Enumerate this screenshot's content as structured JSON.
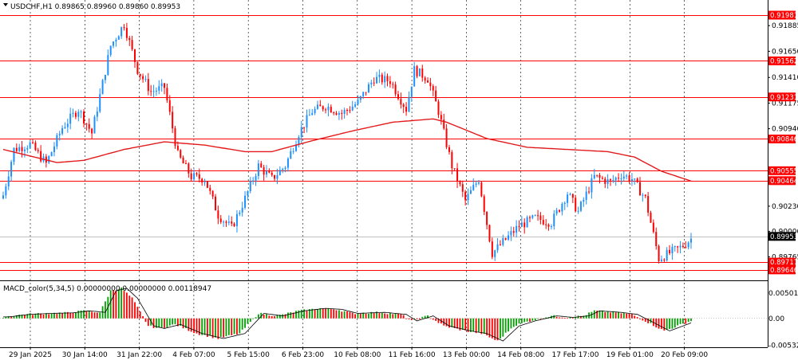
{
  "header": {
    "symbol_info": "USDCHF,H1  0.89865 0.89960 0.89860 0.89953",
    "macd_label": "MACD_color(5,34,5) 0.00000000 0.00000000 0.00118947"
  },
  "colors": {
    "bull": "#1e90ff",
    "bear": "#ff0000",
    "ma": "#e31a1c",
    "level": "#ff0000",
    "hist_up": "#00a000",
    "hist_down": "#ff0000",
    "grid": "#000000"
  },
  "chart_data": {
    "type": "candlestick",
    "price_axis": {
      "ylim": [
        0.8955,
        0.9212
      ],
      "ticks": [
        "0.91885",
        "0.91650",
        "0.91410",
        "0.91175",
        "0.90940",
        "0.90230",
        "0.90000",
        "0.89765"
      ]
    },
    "levels": [
      "0.91981",
      "0.91562",
      "0.91231",
      "0.90846",
      "0.90555",
      "0.90464",
      "0.89717",
      "0.89646"
    ],
    "current_price": "0.89953",
    "time_labels": [
      "29 Jan 2025",
      "30 Jan 14:00",
      "31 Jan 22:00",
      "4 Feb 07:00",
      "5 Feb 15:00",
      "6 Feb 23:00",
      "10 Feb 08:00",
      "11 Feb 16:00",
      "13 Feb 00:00",
      "14 Feb 08:00",
      "17 Feb 17:00",
      "19 Feb 01:00",
      "20 Feb 09:00"
    ],
    "close_anchors": [
      [
        0,
        0.9033
      ],
      [
        4,
        0.9075
      ],
      [
        10,
        0.908
      ],
      [
        16,
        0.9062
      ],
      [
        22,
        0.9095
      ],
      [
        28,
        0.9112
      ],
      [
        33,
        0.909
      ],
      [
        40,
        0.917
      ],
      [
        45,
        0.919
      ],
      [
        50,
        0.9148
      ],
      [
        55,
        0.9128
      ],
      [
        60,
        0.9132
      ],
      [
        65,
        0.907
      ],
      [
        70,
        0.905
      ],
      [
        75,
        0.9048
      ],
      [
        80,
        0.9015
      ],
      [
        85,
        0.9003
      ],
      [
        90,
        0.903
      ],
      [
        95,
        0.906
      ],
      [
        100,
        0.9048
      ],
      [
        105,
        0.906
      ],
      [
        110,
        0.909
      ],
      [
        115,
        0.911
      ],
      [
        120,
        0.9115
      ],
      [
        126,
        0.9108
      ],
      [
        132,
        0.9118
      ],
      [
        138,
        0.914
      ],
      [
        144,
        0.9138
      ],
      [
        150,
        0.9112
      ],
      [
        153,
        0.9148
      ],
      [
        158,
        0.914
      ],
      [
        162,
        0.911
      ],
      [
        167,
        0.906
      ],
      [
        172,
        0.9028
      ],
      [
        177,
        0.9048
      ],
      [
        182,
        0.898
      ],
      [
        186,
        0.899
      ],
      [
        192,
        0.9005
      ],
      [
        198,
        0.9012
      ],
      [
        204,
        0.9008
      ],
      [
        210,
        0.9035
      ],
      [
        214,
        0.9018
      ],
      [
        220,
        0.905
      ],
      [
        226,
        0.9045
      ],
      [
        230,
        0.9052
      ],
      [
        234,
        0.9048
      ],
      [
        239,
        0.903
      ],
      [
        244,
        0.8975
      ],
      [
        248,
        0.898
      ],
      [
        252,
        0.8985
      ],
      [
        256,
        0.8993
      ]
    ],
    "ma_anchors": [
      [
        0,
        0.9075
      ],
      [
        20,
        0.9063
      ],
      [
        30,
        0.9065
      ],
      [
        45,
        0.9075
      ],
      [
        60,
        0.9082
      ],
      [
        75,
        0.9079
      ],
      [
        90,
        0.9073
      ],
      [
        100,
        0.9073
      ],
      [
        115,
        0.9083
      ],
      [
        130,
        0.9092
      ],
      [
        145,
        0.91
      ],
      [
        160,
        0.9103
      ],
      [
        165,
        0.91
      ],
      [
        180,
        0.9085
      ],
      [
        195,
        0.9077
      ],
      [
        210,
        0.9075
      ],
      [
        225,
        0.9073
      ],
      [
        235,
        0.9068
      ],
      [
        245,
        0.9055
      ],
      [
        256,
        0.9046
      ]
    ],
    "macd_axis": {
      "ylim": [
        -0.00575,
        0.0071
      ],
      "ticks": [
        "0.0050160",
        "0.00",
        "-0.0053250"
      ]
    },
    "macd_anchors": [
      [
        0,
        0.0003
      ],
      [
        8,
        0.0008
      ],
      [
        16,
        0.001
      ],
      [
        24,
        0.0011
      ],
      [
        30,
        0.0015
      ],
      [
        36,
        0.0012
      ],
      [
        40,
        0.0055
      ],
      [
        44,
        0.006
      ],
      [
        48,
        0.004
      ],
      [
        54,
        -0.0015
      ],
      [
        58,
        -0.002
      ],
      [
        64,
        -0.0012
      ],
      [
        72,
        -0.003
      ],
      [
        80,
        -0.004
      ],
      [
        88,
        -0.003
      ],
      [
        95,
        0.001
      ],
      [
        102,
        0.0005
      ],
      [
        110,
        0.0015
      ],
      [
        118,
        0.002
      ],
      [
        124,
        0.0018
      ],
      [
        130,
        0.001
      ],
      [
        140,
        0.0012
      ],
      [
        148,
        0.0008
      ],
      [
        152,
        -0.0005
      ],
      [
        158,
        0.0005
      ],
      [
        164,
        -0.0015
      ],
      [
        172,
        -0.0025
      ],
      [
        178,
        -0.003
      ],
      [
        184,
        -0.0045
      ],
      [
        190,
        -0.0015
      ],
      [
        196,
        -0.0005
      ],
      [
        204,
        0.0005
      ],
      [
        210,
        0.0002
      ],
      [
        216,
        0.0005
      ],
      [
        220,
        0.0015
      ],
      [
        228,
        0.0012
      ],
      [
        234,
        0.0008
      ],
      [
        240,
        -0.0008
      ],
      [
        246,
        -0.0025
      ],
      [
        256,
        -0.0005
      ]
    ]
  }
}
